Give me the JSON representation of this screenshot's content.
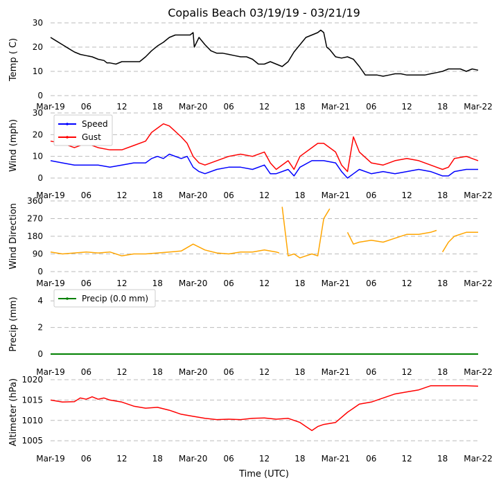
{
  "title": "Copalis Beach 03/19/19 - 03/21/19",
  "xlabel": "Time (UTC)",
  "x_ticks": [
    "Mar-19",
    "06",
    "12",
    "18",
    "Mar-20",
    "06",
    "12",
    "18",
    "Mar-21",
    "06",
    "12",
    "18",
    "Mar-22"
  ],
  "colors": {
    "grid": "#bbbbbb",
    "temp": "#000000",
    "speed": "#0000ff",
    "gust": "#ff0000",
    "dir": "#ffa500",
    "precip": "#008000",
    "alt": "#ff0000"
  },
  "chart_data": [
    {
      "type": "line",
      "ylabel": "Temp ( C)",
      "ylim": [
        0,
        30
      ],
      "yticks": [
        "0",
        "10",
        "20",
        "30"
      ],
      "xlim_hours": [
        0,
        72
      ],
      "series": [
        {
          "name": "Temperature",
          "x": [
            0,
            1,
            2,
            3,
            4,
            5,
            6,
            7,
            8,
            9,
            9.5,
            10,
            11,
            12,
            13,
            14,
            15,
            16,
            17,
            18,
            19,
            20,
            21,
            22,
            23.5,
            24,
            24.2,
            25,
            26,
            27,
            28,
            29,
            30,
            31,
            32,
            33,
            34,
            35,
            36,
            37,
            38,
            39,
            40,
            41,
            42,
            43,
            44,
            45,
            45.5,
            46,
            46.5,
            47,
            48,
            49,
            50,
            51,
            52,
            53,
            54,
            55,
            56,
            57,
            58,
            59,
            60,
            61,
            62,
            63,
            64,
            65,
            66,
            67,
            68,
            69,
            70,
            71,
            72
          ],
          "values": [
            24,
            22.5,
            21,
            19.5,
            18,
            17,
            16.5,
            16,
            15,
            14.5,
            13.5,
            13.5,
            13,
            14,
            14,
            14,
            14,
            16,
            18.5,
            20.5,
            22,
            24,
            25,
            25,
            25,
            26,
            20,
            24,
            21,
            18.5,
            17.5,
            17.5,
            17,
            16.5,
            16,
            16,
            15,
            13,
            13,
            14,
            13,
            12,
            14,
            18,
            21,
            24,
            25,
            26,
            27,
            26,
            20,
            19,
            16,
            15.5,
            16,
            15,
            12,
            8.5,
            8.5,
            8.5,
            8,
            8.5,
            9,
            9,
            8.5,
            8.5,
            8.5,
            8.5,
            9,
            9.5,
            10,
            11,
            11,
            11,
            10,
            11,
            10.5
          ]
        }
      ]
    },
    {
      "type": "line",
      "ylabel": "Wind (mph)",
      "ylim": [
        0,
        30
      ],
      "yticks": [
        "0",
        "10",
        "20",
        "30"
      ],
      "legend": [
        "Speed",
        "Gust"
      ],
      "series": [
        {
          "name": "Speed",
          "x": [
            0,
            2,
            4,
            6,
            8,
            10,
            12,
            14,
            16,
            17,
            18,
            19,
            20,
            22,
            23,
            24,
            25,
            26,
            28,
            30,
            32,
            34,
            36,
            37,
            38,
            40,
            41,
            42,
            44,
            45,
            46,
            48,
            49,
            50,
            52,
            54,
            56,
            58,
            60,
            62,
            64,
            66,
            67,
            68,
            70,
            72
          ],
          "values": [
            8,
            7,
            6,
            6,
            6,
            5,
            6,
            7,
            7,
            9,
            10,
            9,
            11,
            9,
            10,
            5,
            3,
            2,
            4,
            5,
            5,
            4,
            6,
            2,
            2,
            4,
            1,
            5,
            8,
            8,
            8,
            7,
            3,
            0,
            4,
            2,
            3,
            2,
            3,
            4,
            3,
            1,
            1,
            3,
            4,
            4
          ]
        },
        {
          "name": "Gust",
          "x": [
            0,
            2,
            4,
            6,
            8,
            10,
            12,
            14,
            16,
            17,
            18,
            19,
            20,
            22,
            23,
            24,
            25,
            26,
            28,
            30,
            32,
            34,
            36,
            37,
            38,
            40,
            41,
            42,
            44,
            45,
            46,
            48,
            49,
            50,
            51,
            52,
            54,
            56,
            58,
            60,
            62,
            64,
            66,
            67,
            68,
            70,
            72
          ],
          "values": [
            17,
            16,
            14,
            16,
            14,
            13,
            13,
            15,
            17,
            21,
            23,
            25,
            24,
            19,
            16,
            10,
            7,
            6,
            8,
            10,
            11,
            10,
            12,
            7,
            4,
            8,
            4,
            10,
            14,
            16,
            16,
            12,
            6,
            3,
            19,
            12,
            7,
            6,
            8,
            9,
            8,
            6,
            4,
            5,
            9,
            10,
            8
          ]
        }
      ]
    },
    {
      "type": "line",
      "ylabel": "Wind Direction",
      "ylim": [
        0,
        360
      ],
      "yticks": [
        "0",
        "90",
        "180",
        "270",
        "360"
      ],
      "series": [
        {
          "name": "Direction",
          "segments": [
            {
              "x": [
                0,
                2,
                4,
                6,
                8,
                10,
                12,
                14,
                16,
                18,
                20,
                22,
                24,
                26,
                28,
                30,
                32,
                34,
                36,
                38,
                38.5
              ],
              "values": [
                100,
                90,
                95,
                100,
                95,
                100,
                80,
                90,
                90,
                95,
                100,
                105,
                140,
                110,
                95,
                90,
                100,
                100,
                110,
                100,
                95
              ]
            },
            {
              "x": [
                39,
                40,
                41,
                42,
                43,
                44,
                45,
                46,
                47
              ],
              "values": [
                330,
                80,
                90,
                70,
                80,
                90,
                80,
                270,
                320
              ]
            },
            {
              "x": [
                50,
                51,
                52,
                54,
                56,
                58,
                60,
                62,
                64,
                65
              ],
              "values": [
                200,
                140,
                150,
                160,
                150,
                170,
                190,
                190,
                200,
                210
              ]
            },
            {
              "x": [
                66,
                67,
                68,
                70,
                72
              ],
              "values": [
                100,
                150,
                180,
                200,
                200
              ]
            }
          ]
        }
      ]
    },
    {
      "type": "line",
      "ylabel": "Precip (mm)",
      "ylim": [
        0,
        5
      ],
      "yticks": [
        "0",
        "2",
        "4"
      ],
      "legend": [
        "Precip (0.0 mm)"
      ],
      "series": [
        {
          "name": "Precip (0.0 mm)",
          "x": [
            0,
            72
          ],
          "values": [
            0,
            0
          ]
        }
      ]
    },
    {
      "type": "line",
      "ylabel": "Altimeter (hPa)",
      "ylim": [
        1004,
        1020
      ],
      "yticks": [
        "1005",
        "1010",
        "1015",
        "1020"
      ],
      "series": [
        {
          "name": "Altimeter",
          "x": [
            0,
            2,
            4,
            5,
            6,
            7,
            8,
            9,
            10,
            12,
            14,
            16,
            18,
            20,
            22,
            24,
            26,
            28,
            30,
            32,
            34,
            36,
            38,
            40,
            42,
            43,
            44,
            45,
            46,
            48,
            50,
            52,
            54,
            56,
            58,
            60,
            62,
            64,
            66,
            68,
            70,
            72
          ],
          "values": [
            1015,
            1014.5,
            1014.6,
            1015.5,
            1015.2,
            1015.8,
            1015.2,
            1015.5,
            1015.0,
            1014.5,
            1013.5,
            1013.0,
            1013.2,
            1012.5,
            1011.5,
            1011.0,
            1010.5,
            1010.2,
            1010.3,
            1010.2,
            1010.5,
            1010.6,
            1010.3,
            1010.5,
            1009.5,
            1008.5,
            1007.5,
            1008.5,
            1009.0,
            1009.5,
            1012.0,
            1014.0,
            1014.5,
            1015.5,
            1016.5,
            1017.0,
            1017.5,
            1018.5,
            1018.5,
            1018.5,
            1018.5,
            1018.4
          ]
        }
      ]
    }
  ]
}
